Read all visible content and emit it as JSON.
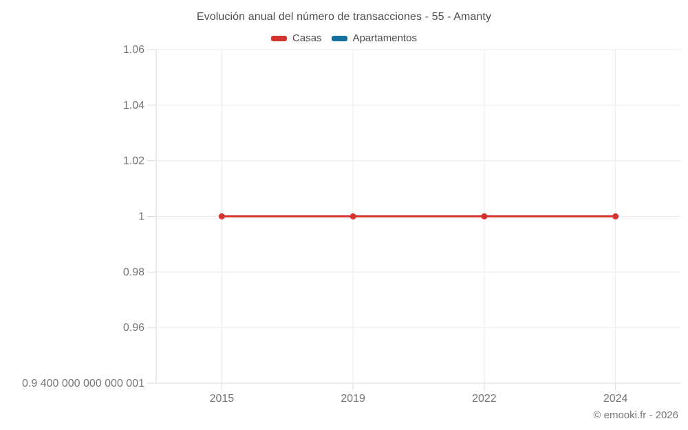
{
  "page": {
    "copyright": "© emooki.fr - 2026"
  },
  "chart_data": {
    "type": "line",
    "title": "Evolución anual del número de transacciones - 55 - Amanty",
    "categories": [
      "2015",
      "2019",
      "2022",
      "2024"
    ],
    "series": [
      {
        "name": "Casas",
        "color": "#d5332d",
        "values": [
          1,
          1,
          1,
          1
        ]
      },
      {
        "name": "Apartamentos",
        "color": "#176f9e",
        "values": []
      }
    ],
    "xlabel": "",
    "ylabel": "",
    "ylim": [
      0.94,
      1.06
    ],
    "y_ticks": [
      {
        "value": 1.06,
        "label": "1.06"
      },
      {
        "value": 1.04,
        "label": "1.04"
      },
      {
        "value": 1.02,
        "label": "1.02"
      },
      {
        "value": 1.0,
        "label": "1"
      },
      {
        "value": 0.98,
        "label": "0.98"
      },
      {
        "value": 0.96,
        "label": "0.96"
      },
      {
        "value": 0.94,
        "label": "0.9 400 000 000 000 001"
      }
    ],
    "grid": true,
    "legend_position": "top"
  },
  "colors": {
    "title_text": "#4d4d4d",
    "tick_text": "#757575",
    "gridline": "#ececec",
    "axis_line": "#d9d9d9",
    "background": "#ffffff"
  }
}
